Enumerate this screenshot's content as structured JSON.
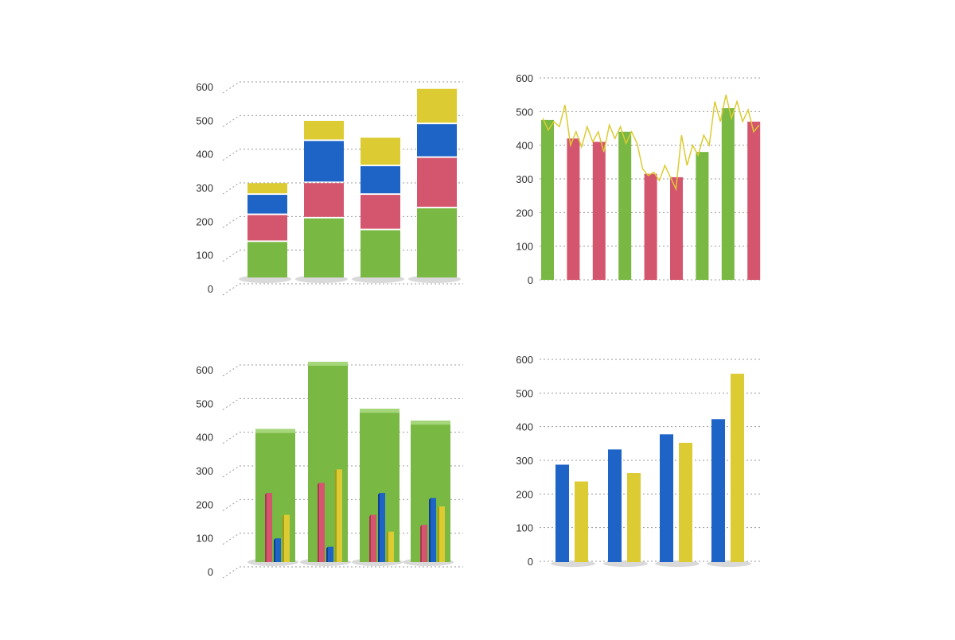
{
  "colors": {
    "green": "#78b843",
    "green_side": "#4e8c2a",
    "green_top": "#a5d67a",
    "red": "#d4566e",
    "red_side": "#a83a50",
    "red_top": "#e88a9c",
    "blue": "#1e63c6",
    "blue_side": "#0f3f8c",
    "blue_top": "#4f8fe6",
    "yellow": "#dccb32",
    "yellow_side": "#a99a14",
    "yellow_top": "#eee173",
    "grid": "#9a9a9a",
    "tick": "#333333",
    "shadow": "#d9d9d9"
  },
  "chart_data": [
    {
      "type": "bar",
      "stacked": true,
      "style": "3d",
      "ylim": [
        0,
        600
      ],
      "yticks": [
        0,
        100,
        200,
        300,
        400,
        500,
        600
      ],
      "grid": true,
      "categories": [
        "",
        "",
        "",
        ""
      ],
      "series": [
        {
          "color": "green",
          "values": [
            110,
            180,
            145,
            210
          ]
        },
        {
          "color": "red",
          "values": [
            80,
            105,
            105,
            150
          ]
        },
        {
          "color": "blue",
          "values": [
            60,
            125,
            85,
            100
          ]
        },
        {
          "color": "yellow",
          "values": [
            35,
            60,
            85,
            105
          ]
        }
      ]
    },
    {
      "type": "bar",
      "style": "bars-with-line",
      "ylim": [
        0,
        600
      ],
      "yticks": [
        0,
        100,
        200,
        300,
        400,
        500,
        600
      ],
      "grid": true,
      "values": [
        475,
        420,
        410,
        440,
        315,
        305,
        380,
        510,
        470
      ],
      "bar_colors": [
        "green",
        "red",
        "red",
        "green",
        "red",
        "red",
        "green",
        "green",
        "red"
      ],
      "line": {
        "color": "yellow",
        "values": [
          480,
          445,
          470,
          455,
          520,
          400,
          440,
          395,
          455,
          410,
          440,
          380,
          460,
          420,
          455,
          405,
          440,
          405,
          330,
          310,
          320,
          295,
          340,
          305,
          270,
          430,
          340,
          400,
          370,
          430,
          400,
          530,
          470,
          550,
          480,
          530,
          470,
          505,
          440,
          460
        ]
      }
    },
    {
      "type": "bar",
      "style": "3d-grouped-in-container",
      "ylim": [
        0,
        600
      ],
      "yticks": [
        0,
        100,
        200,
        300,
        400,
        500,
        600
      ],
      "grid": true,
      "categories": [
        "",
        "",
        "",
        ""
      ],
      "containers": {
        "color": "green",
        "values": [
          400,
          600,
          460,
          425
        ]
      },
      "series": [
        {
          "color": "red",
          "values": [
            215,
            245,
            150,
            120
          ]
        },
        {
          "color": "blue",
          "values": [
            80,
            55,
            215,
            200
          ]
        },
        {
          "color": "yellow",
          "values": [
            150,
            285,
            100,
            175
          ]
        }
      ]
    },
    {
      "type": "bar",
      "style": "3d-grouped",
      "ylim": [
        0,
        600
      ],
      "yticks": [
        0,
        100,
        200,
        300,
        400,
        500,
        600
      ],
      "grid": true,
      "categories": [
        "",
        "",
        "",
        ""
      ],
      "series": [
        {
          "color": "blue",
          "values": [
            280,
            325,
            370,
            415
          ]
        },
        {
          "color": "yellow",
          "values": [
            230,
            255,
            345,
            550
          ]
        }
      ]
    }
  ]
}
